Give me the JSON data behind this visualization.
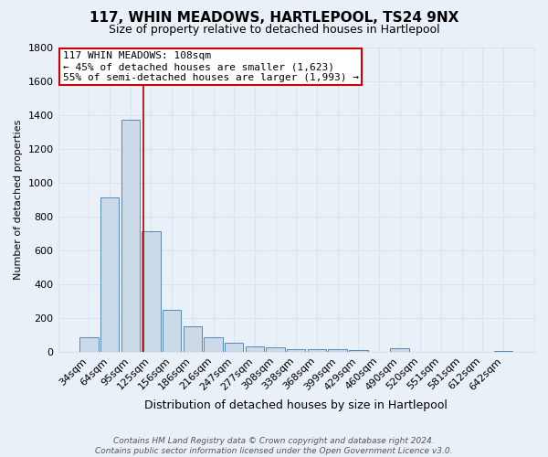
{
  "title": "117, WHIN MEADOWS, HARTLEPOOL, TS24 9NX",
  "subtitle": "Size of property relative to detached houses in Hartlepool",
  "xlabel": "Distribution of detached houses by size in Hartlepool",
  "ylabel": "Number of detached properties",
  "categories": [
    "34sqm",
    "64sqm",
    "95sqm",
    "125sqm",
    "156sqm",
    "186sqm",
    "216sqm",
    "247sqm",
    "277sqm",
    "308sqm",
    "338sqm",
    "368sqm",
    "399sqm",
    "429sqm",
    "460sqm",
    "490sqm",
    "520sqm",
    "551sqm",
    "581sqm",
    "612sqm",
    "642sqm"
  ],
  "values": [
    85,
    910,
    1370,
    710,
    248,
    148,
    88,
    55,
    30,
    25,
    14,
    13,
    13,
    9,
    0,
    18,
    0,
    0,
    0,
    0,
    5
  ],
  "bar_color": "#ccd9e8",
  "bar_edge_color": "#5588bb",
  "background_color": "#eaf0f8",
  "grid_color": "#d8e4f0",
  "vline_x_index": 2.62,
  "vline_color": "#aa0000",
  "annotation_line1": "117 WHIN MEADOWS: 108sqm",
  "annotation_line2": "← 45% of detached houses are smaller (1,623)",
  "annotation_line3": "55% of semi-detached houses are larger (1,993) →",
  "annotation_box_facecolor": "#ffffff",
  "annotation_box_edgecolor": "#cc0000",
  "footer_line1": "Contains HM Land Registry data © Crown copyright and database right 2024.",
  "footer_line2": "Contains public sector information licensed under the Open Government Licence v3.0.",
  "ylim": [
    0,
    1800
  ],
  "yticks": [
    0,
    200,
    400,
    600,
    800,
    1000,
    1200,
    1400,
    1600,
    1800
  ],
  "title_fontsize": 11,
  "subtitle_fontsize": 9,
  "ylabel_fontsize": 8,
  "xlabel_fontsize": 9,
  "tick_fontsize": 8,
  "annotation_fontsize": 8,
  "footer_fontsize": 6.5
}
